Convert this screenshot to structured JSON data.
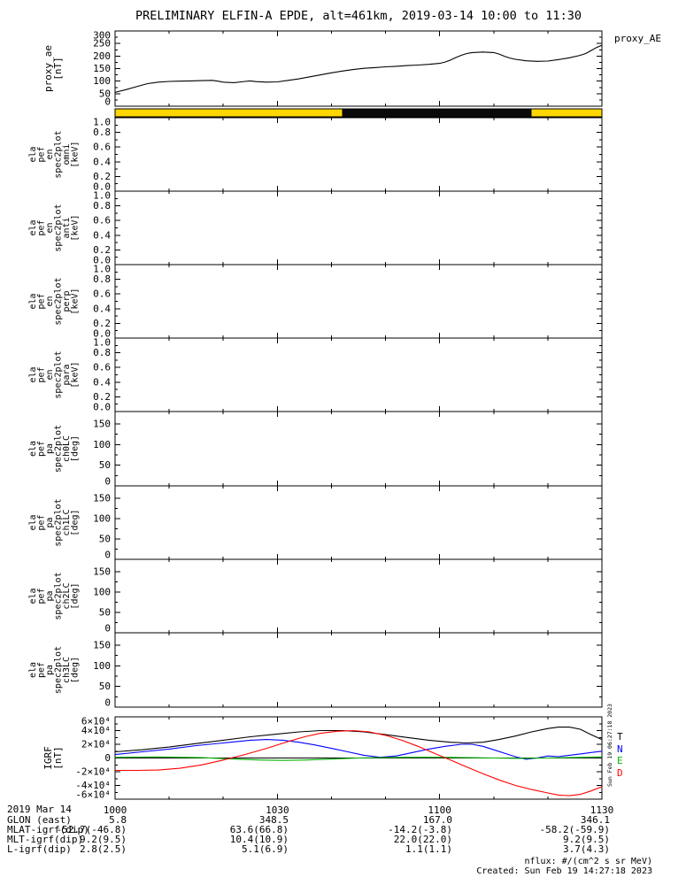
{
  "title": "PRELIMINARY ELFIN-A EPDE, alt=461km, 2019-03-14 10:00 to 11:30",
  "right_labels": {
    "proxy_ae": "proxy_AE"
  },
  "vertical_note": "Sun Feb 19 06:27:18 2023",
  "igrf_legend": [
    {
      "label": "T",
      "color": "#000000"
    },
    {
      "label": "N",
      "color": "#0000ff"
    },
    {
      "label": "E",
      "color": "#00b400"
    },
    {
      "label": "D",
      "color": "#ff0000"
    }
  ],
  "footer": {
    "date_label": "2019 Mar 14",
    "rows": [
      {
        "label": "GLON (east)",
        "values": [
          "5.8",
          "348.5",
          "167.0",
          "346.1"
        ]
      },
      {
        "label": "MLAT-igrf(dip)",
        "values": [
          "-52.7(-46.8)",
          "63.6(66.8)",
          "-14.2(-3.8)",
          "-58.2(-59.9)"
        ]
      },
      {
        "label": "MLT-igrf(dip)",
        "values": [
          "9.2(9.5)",
          "10.4(10.9)",
          "22.0(22.0)",
          "9.2(9.5)"
        ]
      },
      {
        "label": "L-igrf(dip)",
        "values": [
          "2.8(2.5)",
          "5.1(6.9)",
          "1.1(1.1)",
          "3.7(4.3)"
        ]
      }
    ],
    "nflux_note": "nflux: #/(cm^2 s sr MeV)",
    "created": "Created: Sun Feb 19 14:27:18 2023"
  },
  "time_axis": {
    "t_start_min": 0,
    "t_end_min": 90,
    "minor_step_min": 10,
    "major_ticks": [
      {
        "t": 0,
        "label": "1000"
      },
      {
        "t": 30,
        "label": "1030"
      },
      {
        "t": 60,
        "label": "1100"
      },
      {
        "t": 90,
        "label": "1130"
      }
    ]
  },
  "orbit_bar": {
    "segments": [
      {
        "from": 0,
        "to": 42,
        "color": "#ffd700"
      },
      {
        "from": 42,
        "to": 77,
        "color": "#0a0a0a"
      },
      {
        "from": 77,
        "to": 90,
        "color": "#ffd700"
      }
    ]
  },
  "chart_data": [
    {
      "id": "proxy_ae",
      "type": "line",
      "ylabel_lines": [
        "proxy_ae",
        "[nT]"
      ],
      "ymin": 0,
      "ymax": 300,
      "yticks": [
        {
          "v": 0,
          "label": "0"
        },
        {
          "v": 50,
          "label": "50"
        },
        {
          "v": 100,
          "label": "100"
        },
        {
          "v": 150,
          "label": "150"
        },
        {
          "v": 200,
          "label": "200"
        },
        {
          "v": 250,
          "label": "250"
        },
        {
          "v": 300,
          "label": "300"
        }
      ],
      "series": [
        {
          "name": "proxy_ae",
          "color": "#000000",
          "points": [
            [
              0,
              55
            ],
            [
              2,
              66
            ],
            [
              4,
              78
            ],
            [
              6,
              90
            ],
            [
              8,
              96
            ],
            [
              10,
              99
            ],
            [
              12,
              100
            ],
            [
              14,
              101
            ],
            [
              16,
              102
            ],
            [
              18,
              103
            ],
            [
              19,
              100
            ],
            [
              20,
              96
            ],
            [
              22,
              94
            ],
            [
              24,
              99
            ],
            [
              25,
              101
            ],
            [
              26,
              98
            ],
            [
              28,
              96
            ],
            [
              30,
              97
            ],
            [
              32,
              103
            ],
            [
              34,
              109
            ],
            [
              36,
              117
            ],
            [
              38,
              125
            ],
            [
              40,
              133
            ],
            [
              42,
              140
            ],
            [
              44,
              146
            ],
            [
              46,
              151
            ],
            [
              48,
              154
            ],
            [
              50,
              157
            ],
            [
              52,
              159
            ],
            [
              54,
              162
            ],
            [
              56,
              164
            ],
            [
              58,
              167
            ],
            [
              60,
              171
            ],
            [
              61,
              176
            ],
            [
              62,
              184
            ],
            [
              63,
              194
            ],
            [
              64,
              203
            ],
            [
              65,
              210
            ],
            [
              66,
              214
            ],
            [
              68,
              216
            ],
            [
              70,
              214
            ],
            [
              71,
              208
            ],
            [
              72,
              199
            ],
            [
              73,
              192
            ],
            [
              74,
              187
            ],
            [
              76,
              181
            ],
            [
              78,
              179
            ],
            [
              80,
              180
            ],
            [
              82,
              186
            ],
            [
              84,
              193
            ],
            [
              86,
              203
            ],
            [
              87,
              210
            ],
            [
              88,
              222
            ],
            [
              89,
              234
            ],
            [
              90,
              243
            ]
          ]
        }
      ]
    },
    {
      "id": "en_omni",
      "type": "line",
      "ylabel_lines": [
        "ela",
        "pef",
        "en",
        "spec2plot",
        "omni",
        "[keV]"
      ],
      "ymin": 0.0,
      "ymax": 1.0,
      "yticks": [
        {
          "v": 0.0,
          "label": "0.0"
        },
        {
          "v": 0.2,
          "label": "0.2"
        },
        {
          "v": 0.4,
          "label": "0.4"
        },
        {
          "v": 0.6,
          "label": "0.6"
        },
        {
          "v": 0.8,
          "label": "0.8"
        },
        {
          "v": 1.0,
          "label": "1.0"
        }
      ],
      "series": []
    },
    {
      "id": "en_anti",
      "type": "line",
      "ylabel_lines": [
        "ela",
        "pef",
        "en",
        "spec2plot",
        "anti",
        "[keV]"
      ],
      "ymin": 0.0,
      "ymax": 1.0,
      "yticks": [
        {
          "v": 0.0,
          "label": "0.0"
        },
        {
          "v": 0.2,
          "label": "0.2"
        },
        {
          "v": 0.4,
          "label": "0.4"
        },
        {
          "v": 0.6,
          "label": "0.6"
        },
        {
          "v": 0.8,
          "label": "0.8"
        },
        {
          "v": 1.0,
          "label": "1.0"
        }
      ],
      "series": []
    },
    {
      "id": "en_perp",
      "type": "line",
      "ylabel_lines": [
        "ela",
        "pef",
        "en",
        "spec2plot",
        "perp",
        "[keV]"
      ],
      "ymin": 0.0,
      "ymax": 1.0,
      "yticks": [
        {
          "v": 0.0,
          "label": "0.0"
        },
        {
          "v": 0.2,
          "label": "0.2"
        },
        {
          "v": 0.4,
          "label": "0.4"
        },
        {
          "v": 0.6,
          "label": "0.6"
        },
        {
          "v": 0.8,
          "label": "0.8"
        },
        {
          "v": 1.0,
          "label": "1.0"
        }
      ],
      "series": []
    },
    {
      "id": "en_para",
      "type": "line",
      "ylabel_lines": [
        "ela",
        "pef",
        "en",
        "spec2plot",
        "para",
        "[keV]"
      ],
      "ymin": 0.0,
      "ymax": 1.0,
      "yticks": [
        {
          "v": 0.0,
          "label": "0.0"
        },
        {
          "v": 0.2,
          "label": "0.2"
        },
        {
          "v": 0.4,
          "label": "0.4"
        },
        {
          "v": 0.6,
          "label": "0.6"
        },
        {
          "v": 0.8,
          "label": "0.8"
        },
        {
          "v": 1.0,
          "label": "1.0"
        }
      ],
      "series": []
    },
    {
      "id": "pa_ch0lc",
      "type": "line",
      "ylabel_lines": [
        "ela",
        "pef",
        "pa",
        "spec2plot",
        "ch0LC",
        "[deg]"
      ],
      "ymin": 0,
      "ymax": 180,
      "yticks": [
        {
          "v": 0,
          "label": "0"
        },
        {
          "v": 50,
          "label": "50"
        },
        {
          "v": 100,
          "label": "100"
        },
        {
          "v": 150,
          "label": "150"
        }
      ],
      "series": []
    },
    {
      "id": "pa_ch1lc",
      "type": "line",
      "ylabel_lines": [
        "ela",
        "pef",
        "pa",
        "spec2plot",
        "ch1LC",
        "[deg]"
      ],
      "ymin": 0,
      "ymax": 180,
      "yticks": [
        {
          "v": 0,
          "label": "0"
        },
        {
          "v": 50,
          "label": "50"
        },
        {
          "v": 100,
          "label": "100"
        },
        {
          "v": 150,
          "label": "150"
        }
      ],
      "series": []
    },
    {
      "id": "pa_ch2lc",
      "type": "line",
      "ylabel_lines": [
        "ela",
        "pef",
        "pa",
        "spec2plot",
        "ch2LC",
        "[deg]"
      ],
      "ymin": 0,
      "ymax": 180,
      "yticks": [
        {
          "v": 0,
          "label": "0"
        },
        {
          "v": 50,
          "label": "50"
        },
        {
          "v": 100,
          "label": "100"
        },
        {
          "v": 150,
          "label": "150"
        }
      ],
      "series": []
    },
    {
      "id": "pa_ch3lc",
      "type": "line",
      "ylabel_lines": [
        "ela",
        "pef",
        "pa",
        "spec2plot",
        "ch3LC",
        "[deg]"
      ],
      "ymin": 0,
      "ymax": 180,
      "yticks": [
        {
          "v": 0,
          "label": "0"
        },
        {
          "v": 50,
          "label": "50"
        },
        {
          "v": 100,
          "label": "100"
        },
        {
          "v": 150,
          "label": "150"
        }
      ],
      "series": []
    },
    {
      "id": "igrf",
      "type": "line",
      "zero_line": true,
      "ylabel_lines": [
        "IGRF",
        "[nT]"
      ],
      "ymin": -60000,
      "ymax": 60000,
      "yticks": [
        {
          "v": -60000,
          "label": "-6×10⁴"
        },
        {
          "v": -40000,
          "label": "-4×10⁴"
        },
        {
          "v": -20000,
          "label": "-2×10⁴"
        },
        {
          "v": 0,
          "label": "0"
        },
        {
          "v": 20000,
          "label": "2×10⁴"
        },
        {
          "v": 40000,
          "label": "4×10⁴"
        },
        {
          "v": 60000,
          "label": "6×10⁴"
        }
      ],
      "series": [
        {
          "name": "T",
          "color": "#000000",
          "points": [
            [
              0,
              9000
            ],
            [
              5,
              12000
            ],
            [
              10,
              16000
            ],
            [
              15,
              21000
            ],
            [
              20,
              26000
            ],
            [
              25,
              31000
            ],
            [
              30,
              35000
            ],
            [
              34,
              38000
            ],
            [
              38,
              40000
            ],
            [
              42,
              40000
            ],
            [
              46,
              38000
            ],
            [
              50,
              34000
            ],
            [
              54,
              30000
            ],
            [
              58,
              26000
            ],
            [
              62,
              23000
            ],
            [
              65,
              22000
            ],
            [
              68,
              23000
            ],
            [
              71,
              27000
            ],
            [
              74,
              32000
            ],
            [
              77,
              38000
            ],
            [
              80,
              43000
            ],
            [
              82,
              45000
            ],
            [
              84,
              45000
            ],
            [
              86,
              42000
            ],
            [
              88,
              34000
            ],
            [
              90,
              27000
            ]
          ]
        },
        {
          "name": "N",
          "color": "#0000ff",
          "points": [
            [
              0,
              5000
            ],
            [
              5,
              9000
            ],
            [
              10,
              13000
            ],
            [
              15,
              18000
            ],
            [
              20,
              22000
            ],
            [
              25,
              26000
            ],
            [
              28,
              27000
            ],
            [
              31,
              26000
            ],
            [
              34,
              23000
            ],
            [
              37,
              19000
            ],
            [
              40,
              14000
            ],
            [
              43,
              9000
            ],
            [
              46,
              4000
            ],
            [
              49,
              1000
            ],
            [
              52,
              3000
            ],
            [
              55,
              8000
            ],
            [
              58,
              13000
            ],
            [
              61,
              17000
            ],
            [
              64,
              20000
            ],
            [
              66,
              20000
            ],
            [
              68,
              17000
            ],
            [
              70,
              12000
            ],
            [
              72,
              7000
            ],
            [
              74,
              2000
            ],
            [
              76,
              -2000
            ],
            [
              78,
              0
            ],
            [
              80,
              3000
            ],
            [
              82,
              2000
            ],
            [
              84,
              4000
            ],
            [
              86,
              6000
            ],
            [
              88,
              8000
            ],
            [
              90,
              10000
            ]
          ]
        },
        {
          "name": "E",
          "color": "#00b400",
          "points": [
            [
              0,
              1000
            ],
            [
              8,
              1500
            ],
            [
              16,
              500
            ],
            [
              22,
              -1500
            ],
            [
              27,
              -3000
            ],
            [
              31,
              -3500
            ],
            [
              35,
              -3000
            ],
            [
              40,
              -1500
            ],
            [
              45,
              0
            ],
            [
              50,
              800
            ],
            [
              55,
              1000
            ],
            [
              60,
              1000
            ],
            [
              65,
              500
            ],
            [
              70,
              0
            ],
            [
              75,
              -500
            ],
            [
              80,
              0
            ],
            [
              85,
              800
            ],
            [
              90,
              1500
            ]
          ]
        },
        {
          "name": "D",
          "color": "#ff0000",
          "points": [
            [
              0,
              -18000
            ],
            [
              4,
              -18000
            ],
            [
              8,
              -17500
            ],
            [
              12,
              -15000
            ],
            [
              16,
              -10000
            ],
            [
              20,
              -3000
            ],
            [
              24,
              5000
            ],
            [
              28,
              14000
            ],
            [
              32,
              24000
            ],
            [
              35,
              31000
            ],
            [
              38,
              36000
            ],
            [
              41,
              39000
            ],
            [
              44,
              40000
            ],
            [
              47,
              38000
            ],
            [
              50,
              33000
            ],
            [
              53,
              26000
            ],
            [
              56,
              17000
            ],
            [
              59,
              7000
            ],
            [
              62,
              -3000
            ],
            [
              65,
              -13000
            ],
            [
              68,
              -23000
            ],
            [
              71,
              -32000
            ],
            [
              74,
              -40000
            ],
            [
              77,
              -46000
            ],
            [
              80,
              -51000
            ],
            [
              82,
              -54000
            ],
            [
              84,
              -55000
            ],
            [
              86,
              -53000
            ],
            [
              88,
              -48000
            ],
            [
              90,
              -42000
            ]
          ]
        }
      ]
    }
  ]
}
